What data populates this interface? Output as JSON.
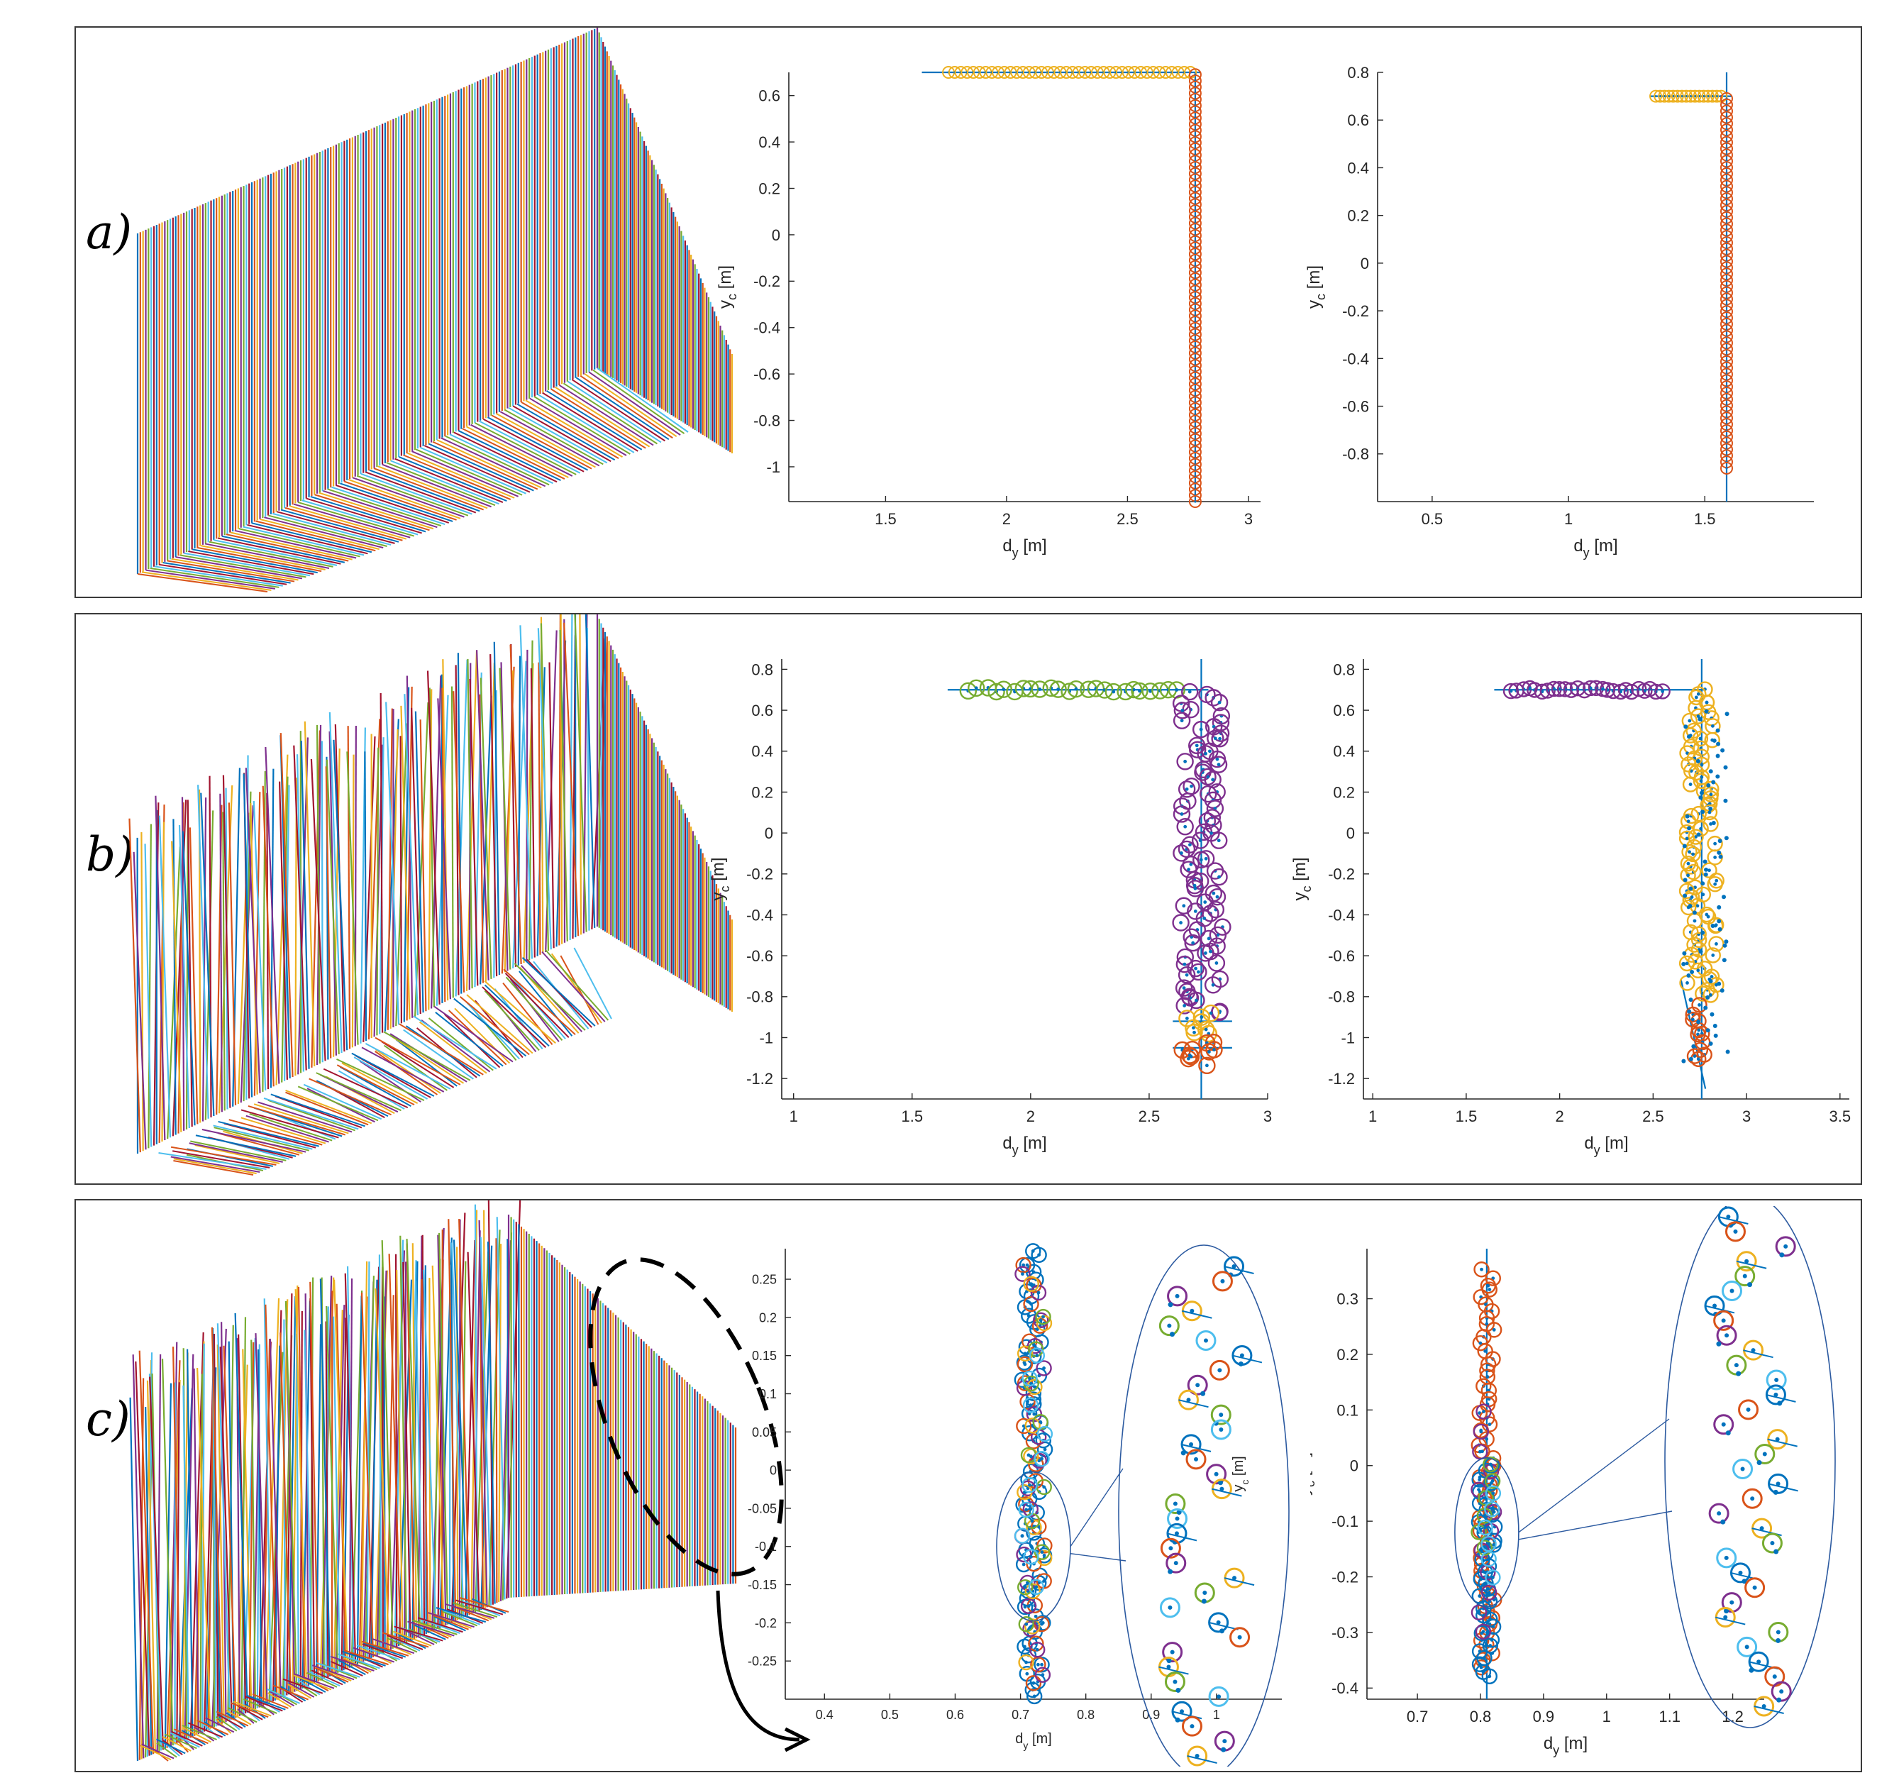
{
  "figure": {
    "panels": [
      {
        "label": "a)"
      },
      {
        "label": "b)"
      },
      {
        "label": "c)"
      }
    ]
  },
  "palette": [
    "#0072BD",
    "#D95319",
    "#EDB120",
    "#7E2F8E",
    "#77AC30",
    "#4DBEEE",
    "#A2142F"
  ],
  "chart_data": [
    {
      "id": "a1",
      "type": "scatter",
      "xlabel": "d",
      "xlabel_sub": "y",
      "xlabel_unit": " [m]",
      "ylabel": "y",
      "ylabel_sub": "c",
      "ylabel_unit": " [m]",
      "xlim": [
        1.1,
        3.05
      ],
      "ylim": [
        -1.15,
        0.7
      ],
      "xticks": [
        1.5,
        2,
        2.5,
        3
      ],
      "xtick_labels": [
        "1.5",
        "2",
        "2.5",
        "3"
      ],
      "yticks": [
        0.6,
        0.4,
        0.2,
        0,
        -0.2,
        -0.4,
        -0.6,
        -0.8,
        -1
      ],
      "ytick_labels": [
        "0.6",
        "0.4",
        "0.2",
        "0",
        "-0.2",
        "-0.4",
        "-0.6",
        "-0.8",
        "-1"
      ],
      "lines": [
        {
          "x": [
            1.65,
            2.8
          ],
          "y": [
            0.7,
            0.7
          ]
        },
        {
          "x": [
            2.78,
            2.78
          ],
          "y": [
            0.7,
            -1.15
          ]
        }
      ],
      "series": [
        {
          "color": "#EDB120",
          "kind": "circle",
          "points": {
            "x_from": 1.76,
            "x_to": 2.76,
            "y_from": 0.7,
            "y_to": 0.7,
            "n": 40,
            "jitter_x": 0,
            "jitter_y": 0
          }
        },
        {
          "color": "#D95319",
          "kind": "circle",
          "points": {
            "x_from": 2.78,
            "x_to": 2.78,
            "y_from": 0.69,
            "y_to": -1.15,
            "n": 70,
            "jitter_x": 0,
            "jitter_y": 0
          }
        }
      ]
    },
    {
      "id": "a2",
      "type": "scatter",
      "xlabel": "d",
      "xlabel_sub": "y",
      "xlabel_unit": " [m]",
      "ylabel": "y",
      "ylabel_sub": "c",
      "ylabel_unit": " [m]",
      "xlim": [
        0.3,
        1.9
      ],
      "ylim": [
        -1,
        0.8
      ],
      "xticks": [
        0.5,
        1,
        1.5
      ],
      "xtick_labels": [
        "0.5",
        "1",
        "1.5"
      ],
      "yticks": [
        0.8,
        0.6,
        0.4,
        0.2,
        0,
        -0.2,
        -0.4,
        -0.6,
        -0.8
      ],
      "ytick_labels": [
        "0.8",
        "0.6",
        "0.4",
        "0.2",
        "0",
        "-0.2",
        "-0.4",
        "-0.6",
        "-0.8"
      ],
      "lines": [
        {
          "x": [
            1.3,
            1.6
          ],
          "y": [
            0.7,
            0.7
          ]
        },
        {
          "x": [
            1.58,
            1.58
          ],
          "y": [
            0.8,
            -1
          ]
        }
      ],
      "series": [
        {
          "color": "#EDB120",
          "kind": "circle",
          "points": {
            "x_from": 1.32,
            "x_to": 1.56,
            "y_from": 0.7,
            "y_to": 0.7,
            "n": 16,
            "jitter_x": 0,
            "jitter_y": 0
          }
        },
        {
          "color": "#D95319",
          "kind": "circle",
          "points": {
            "x_from": 1.58,
            "x_to": 1.58,
            "y_from": 0.69,
            "y_to": -0.86,
            "n": 60,
            "jitter_x": 0,
            "jitter_y": 0
          }
        }
      ]
    },
    {
      "id": "b1",
      "type": "scatter",
      "xlabel": "d",
      "xlabel_sub": "y",
      "xlabel_unit": " [m]",
      "ylabel": "y",
      "ylabel_sub": "c",
      "ylabel_unit": " [m]",
      "xlim": [
        0.95,
        3
      ],
      "ylim": [
        -1.3,
        0.85
      ],
      "xticks": [
        1,
        1.5,
        2,
        2.5,
        3
      ],
      "xtick_labels": [
        "1",
        "1.5",
        "2",
        "2.5",
        "3"
      ],
      "yticks": [
        0.8,
        0.6,
        0.4,
        0.2,
        0,
        -0.2,
        -0.4,
        -0.6,
        -0.8,
        -1,
        -1.2
      ],
      "ytick_labels": [
        "0.8",
        "0.6",
        "0.4",
        "0.2",
        "0",
        "-0.2",
        "-0.4",
        "-0.6",
        "-0.8",
        "-1",
        "-1.2"
      ],
      "lines": [
        {
          "x": [
            1.65,
            2.75
          ],
          "y": [
            0.7,
            0.7
          ]
        },
        {
          "x": [
            2.72,
            2.72
          ],
          "y": [
            0.85,
            -1.3
          ]
        },
        {
          "x": [
            2.6,
            2.85
          ],
          "y": [
            -0.92,
            -0.92
          ]
        },
        {
          "x": [
            2.6,
            2.85
          ],
          "y": [
            -1.05,
            -1.05
          ]
        }
      ],
      "series": [
        {
          "color": "#77AC30",
          "kind": "ring",
          "points": {
            "x_from": 1.74,
            "x_to": 2.62,
            "y_from": 0.7,
            "y_to": 0.7,
            "n": 24,
            "jitter_x": 0.01,
            "jitter_y": 0.01
          }
        },
        {
          "color": "#7E2F8E",
          "kind": "ring",
          "points": {
            "x_from": 2.72,
            "x_to": 2.72,
            "y_from": 0.7,
            "y_to": -0.88,
            "n": 90,
            "jitter_x": 0.09,
            "jitter_y": 0.01
          }
        },
        {
          "color": "#EDB120",
          "kind": "ring",
          "points": {
            "x_from": 2.72,
            "x_to": 2.72,
            "y_from": -0.9,
            "y_to": -0.98,
            "n": 8,
            "jitter_x": 0.08,
            "jitter_y": 0.02
          }
        },
        {
          "color": "#D95319",
          "kind": "ring",
          "points": {
            "x_from": 2.72,
            "x_to": 2.72,
            "y_from": -1.02,
            "y_to": -1.12,
            "n": 10,
            "jitter_x": 0.08,
            "jitter_y": 0.02
          }
        }
      ]
    },
    {
      "id": "b2",
      "type": "scatter",
      "xlabel": "d",
      "xlabel_sub": "y",
      "xlabel_unit": " [m]",
      "ylabel": "y",
      "ylabel_sub": "c",
      "ylabel_unit": " [m]",
      "xlim": [
        0.95,
        3.55
      ],
      "ylim": [
        -1.3,
        0.85
      ],
      "xticks": [
        1,
        1.5,
        2,
        2.5,
        3,
        3.5
      ],
      "xtick_labels": [
        "1",
        "1.5",
        "2",
        "2.5",
        "3",
        "3.5"
      ],
      "yticks": [
        0.8,
        0.6,
        0.4,
        0.2,
        0,
        -0.2,
        -0.4,
        -0.6,
        -0.8,
        -1,
        -1.2
      ],
      "ytick_labels": [
        "0.8",
        "0.6",
        "0.4",
        "0.2",
        "0",
        "-0.2",
        "-0.4",
        "-0.6",
        "-0.8",
        "-1",
        "-1.2"
      ],
      "lines": [
        {
          "x": [
            1.65,
            2.78
          ],
          "y": [
            0.7,
            0.7
          ]
        },
        {
          "x": [
            2.76,
            2.76
          ],
          "y": [
            0.85,
            -1.3
          ]
        },
        {
          "x": [
            2.65,
            2.78
          ],
          "y": [
            -0.72,
            -1.25
          ]
        }
      ],
      "series": [
        {
          "color": "#7E2F8E",
          "kind": "ring",
          "points": {
            "x_from": 1.74,
            "x_to": 2.55,
            "y_from": 0.7,
            "y_to": 0.7,
            "n": 26,
            "jitter_x": 0.005,
            "jitter_y": 0.01
          }
        },
        {
          "color": "#EDB120",
          "kind": "ring",
          "points": {
            "x_from": 2.76,
            "x_to": 2.76,
            "y_from": 0.7,
            "y_to": -0.8,
            "n": 85,
            "jitter_x": 0.08,
            "jitter_y": 0.01
          }
        },
        {
          "color": "#D95319",
          "kind": "ring",
          "points": {
            "x_from": 2.73,
            "x_to": 2.76,
            "y_from": -0.85,
            "y_to": -1.12,
            "n": 12,
            "jitter_x": 0.04,
            "jitter_y": 0.02
          }
        },
        {
          "color": "#0072BD",
          "kind": "dot",
          "points": {
            "x_from": 2.78,
            "x_to": 2.78,
            "y_from": 0.6,
            "y_to": -1.12,
            "n": 70,
            "jitter_x": 0.12,
            "jitter_y": 0.01
          }
        }
      ]
    },
    {
      "id": "c1",
      "type": "scatter",
      "xlabel": "d",
      "xlabel_sub": "y",
      "xlabel_unit": " [m]",
      "ylabel": "y",
      "ylabel_sub": "c",
      "ylabel_unit": " [m]",
      "xlim": [
        0.34,
        1.1
      ],
      "ylim": [
        -0.3,
        0.29
      ],
      "xticks": [
        0.4,
        0.5,
        0.6,
        0.7,
        0.8,
        0.9,
        1
      ],
      "xtick_labels": [
        "0.4",
        "0.5",
        "0.6",
        "0.7",
        "0.8",
        "0.9",
        "1"
      ],
      "yticks": [
        0.25,
        0.2,
        0.15,
        0.1,
        0.05,
        0,
        -0.05,
        -0.1,
        -0.15,
        -0.2,
        -0.25
      ],
      "ytick_labels": [
        "0.25",
        "0.2",
        "0.15",
        "0.1",
        "0.05",
        "0",
        "-0.05",
        "-0.1",
        "-0.15",
        "-0.2",
        "-0.25"
      ],
      "lines": [],
      "series": [
        {
          "color": "#0072BD",
          "kind": "ring",
          "points": {
            "x_from": 0.72,
            "x_to": 0.72,
            "y_from": 0.29,
            "y_to": -0.3,
            "n": 55,
            "jitter_x": 0.018,
            "jitter_y": 0.004
          }
        },
        {
          "color": "#D95319",
          "kind": "ring",
          "points": {
            "x_from": 0.72,
            "x_to": 0.72,
            "y_from": 0.27,
            "y_to": -0.28,
            "n": 22,
            "jitter_x": 0.018,
            "jitter_y": 0.004
          }
        },
        {
          "color": "#7E2F8E",
          "kind": "ring",
          "points": {
            "x_from": 0.72,
            "x_to": 0.72,
            "y_from": 0.26,
            "y_to": -0.27,
            "n": 18,
            "jitter_x": 0.018,
            "jitter_y": 0.004
          }
        },
        {
          "color": "#EDB120",
          "kind": "ring",
          "points": {
            "x_from": 0.72,
            "x_to": 0.72,
            "y_from": 0.24,
            "y_to": -0.25,
            "n": 12,
            "jitter_x": 0.018,
            "jitter_y": 0.004
          }
        },
        {
          "color": "#77AC30",
          "kind": "ring",
          "points": {
            "x_from": 0.72,
            "x_to": 0.72,
            "y_from": 0.2,
            "y_to": -0.2,
            "n": 10,
            "jitter_x": 0.018,
            "jitter_y": 0.004
          }
        },
        {
          "color": "#4DBEEE",
          "kind": "ring",
          "points": {
            "x_from": 0.72,
            "x_to": 0.72,
            "y_from": 0.15,
            "y_to": -0.15,
            "n": 10,
            "jitter_x": 0.018,
            "jitter_y": 0.004
          }
        }
      ]
    },
    {
      "id": "c2",
      "type": "scatter",
      "xlabel": "d",
      "xlabel_sub": "y",
      "xlabel_unit": " [m]",
      "ylabel": "y",
      "ylabel_sub": "c",
      "ylabel_unit": " [m]",
      "xlim": [
        0.62,
        1.25
      ],
      "ylim": [
        -0.42,
        0.39
      ],
      "xticks": [
        0.7,
        0.8,
        0.9,
        1,
        1.1,
        1.2
      ],
      "xtick_labels": [
        "0.7",
        "0.8",
        "0.9",
        "1",
        "1.1",
        "1.2"
      ],
      "yticks": [
        0.3,
        0.2,
        0.1,
        0,
        -0.1,
        -0.2,
        -0.3,
        -0.4
      ],
      "ytick_labels": [
        "0.3",
        "0.2",
        "0.1",
        "0",
        "-0.1",
        "-0.2",
        "-0.3",
        "-0.4"
      ],
      "lines": [
        {
          "x": [
            0.81,
            0.81
          ],
          "y": [
            0.39,
            -0.42
          ]
        }
      ],
      "series": [
        {
          "color": "#D95319",
          "kind": "ring",
          "points": {
            "x_from": 0.81,
            "x_to": 0.81,
            "y_from": 0.35,
            "y_to": -0.36,
            "n": 60,
            "jitter_x": 0.013,
            "jitter_y": 0.003
          }
        },
        {
          "color": "#0072BD",
          "kind": "ring",
          "points": {
            "x_from": 0.81,
            "x_to": 0.81,
            "y_from": 0.0,
            "y_to": -0.38,
            "n": 35,
            "jitter_x": 0.013,
            "jitter_y": 0.003
          }
        },
        {
          "color": "#7E2F8E",
          "kind": "ring",
          "points": {
            "x_from": 0.81,
            "x_to": 0.81,
            "y_from": 0.1,
            "y_to": -0.3,
            "n": 12,
            "jitter_x": 0.013,
            "jitter_y": 0.003
          }
        },
        {
          "color": "#77AC30",
          "kind": "ring",
          "points": {
            "x_from": 0.81,
            "x_to": 0.81,
            "y_from": 0.0,
            "y_to": -0.15,
            "n": 6,
            "jitter_x": 0.013,
            "jitter_y": 0.003
          }
        },
        {
          "color": "#4DBEEE",
          "kind": "ring",
          "points": {
            "x_from": 0.81,
            "x_to": 0.81,
            "y_from": -0.05,
            "y_to": -0.2,
            "n": 6,
            "jitter_x": 0.013,
            "jitter_y": 0.003
          }
        }
      ]
    }
  ]
}
